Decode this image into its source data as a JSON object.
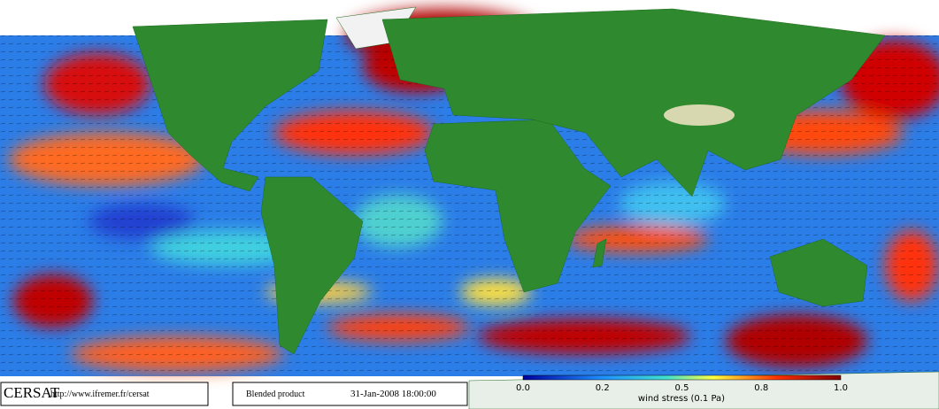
{
  "footer": {
    "logo": "CERSAT",
    "url": "http://www.ifremer.fr/cersat",
    "product": "Blended product",
    "timestamp": "31-Jan-2008 18:00:00"
  },
  "colorbar": {
    "ticks": [
      "0.0",
      "0.2",
      "0.5",
      "0.8",
      "1.0"
    ],
    "label": "wind stress (0.1 Pa)"
  }
}
